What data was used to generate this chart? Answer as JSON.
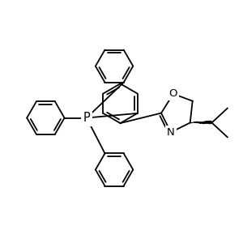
{
  "background": "#ffffff",
  "line_color": "#000000",
  "line_width": 1.3,
  "font_size": 9.5,
  "figsize": [
    3.0,
    3.0
  ],
  "dpi": 100,
  "xlim": [
    0.0,
    10.0
  ],
  "ylim": [
    1.0,
    9.0
  ]
}
